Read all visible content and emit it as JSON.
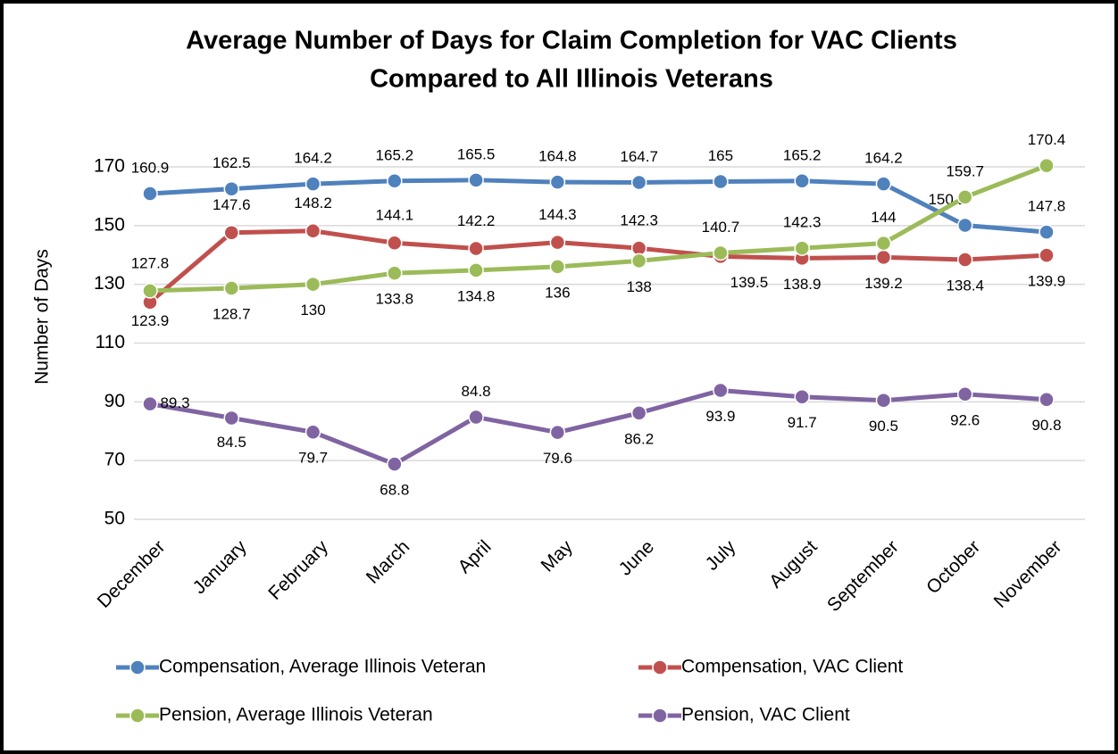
{
  "chart_data": {
    "type": "line",
    "title": [
      "Average Number of Days for Claim Completion for VAC Clients",
      "Compared to All Illinois Veterans"
    ],
    "y_label": "Number of Days",
    "categories": [
      "December",
      "January",
      "February",
      "March",
      "April",
      "May",
      "June",
      "July",
      "August",
      "September",
      "October",
      "November"
    ],
    "series": [
      {
        "name": "Compensation, Average Illinois Veteran",
        "color": "#4f81bd",
        "values": [
          160.9,
          162.5,
          164.2,
          165.2,
          165.5,
          164.8,
          164.7,
          165,
          165.2,
          164.2,
          150.1,
          147.8
        ]
      },
      {
        "name": "Compensation, VAC Client",
        "color": "#c0504d",
        "values": [
          123.9,
          147.6,
          148.2,
          144.1,
          142.2,
          144.3,
          142.3,
          139.5,
          138.9,
          139.2,
          138.4,
          139.9
        ]
      },
      {
        "name": "Pension, Average Illinois Veteran",
        "color": "#9bbb59",
        "values": [
          127.8,
          128.7,
          130,
          133.8,
          134.8,
          136,
          138,
          140.7,
          142.3,
          144,
          159.7,
          170.4
        ]
      },
      {
        "name": "Pension, VAC Client",
        "color": "#8064a2",
        "values": [
          89.3,
          84.5,
          79.7,
          68.8,
          84.8,
          79.6,
          86.2,
          93.9,
          91.7,
          90.5,
          92.6,
          90.8
        ]
      }
    ],
    "ylim": [
      50,
      170
    ],
    "yticks": [
      50,
      70,
      90,
      110,
      130,
      150,
      170
    ],
    "grid": true
  }
}
